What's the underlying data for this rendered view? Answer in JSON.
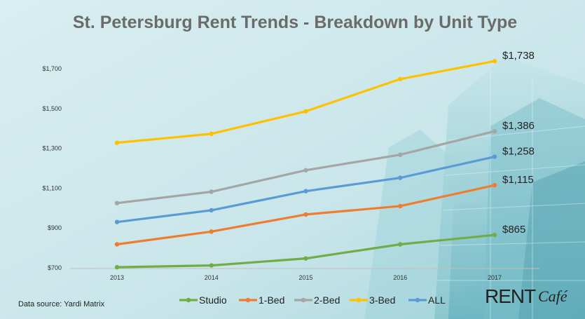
{
  "chart_data": {
    "type": "line",
    "title": "St. Petersburg Rent Trends - Breakdown by Unit Type",
    "categories": [
      "2013",
      "2014",
      "2015",
      "2016",
      "2017"
    ],
    "y_ticks": [
      "$700",
      "$900",
      "$1,100",
      "$1,300",
      "$1,500",
      "$1,700"
    ],
    "ylim": [
      700,
      1700
    ],
    "grid": false,
    "legend_position": "bottom",
    "series": [
      {
        "name": "Studio",
        "color": "#70ad47",
        "values": [
          703,
          712,
          747,
          818,
          865
        ],
        "end_label": "$865"
      },
      {
        "name": "1-Bed",
        "color": "#ed7d31",
        "values": [
          818,
          882,
          968,
          1010,
          1115
        ],
        "end_label": "$1,115"
      },
      {
        "name": "2-Bed",
        "color": "#a5a5a5",
        "values": [
          1025,
          1082,
          1190,
          1268,
          1386
        ],
        "end_label": "$1,386"
      },
      {
        "name": "3-Bed",
        "color": "#ffc000",
        "values": [
          1328,
          1373,
          1486,
          1648,
          1738
        ],
        "end_label": "$1,738"
      },
      {
        "name": "ALL",
        "color": "#5b9bd5",
        "values": [
          930,
          989,
          1085,
          1152,
          1258
        ],
        "end_label": "$1,258"
      }
    ]
  },
  "source_note": "Data source:  Yardi Matrix",
  "brand": {
    "part1": "RENT",
    "part2": "Café"
  }
}
